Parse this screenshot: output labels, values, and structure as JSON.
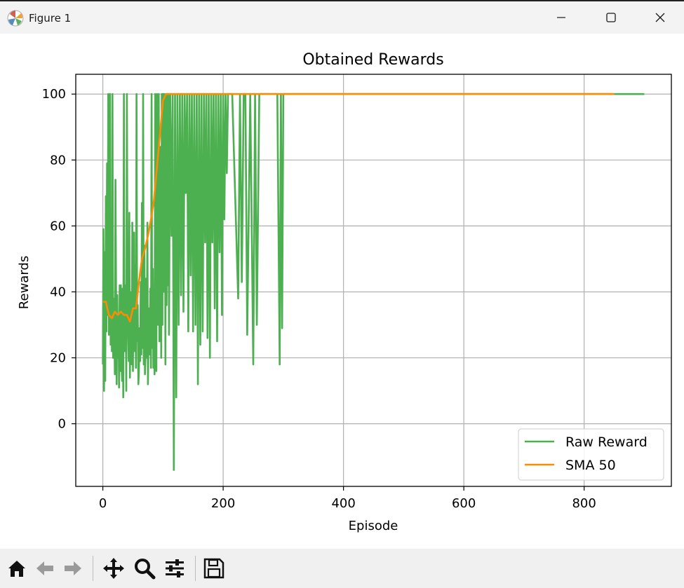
{
  "window": {
    "title": "Figure 1",
    "icons": [
      "matplotlib-logo-icon",
      "minimize-icon",
      "maximize-icon",
      "close-icon"
    ]
  },
  "toolbar": {
    "buttons": [
      "home-icon",
      "back-icon",
      "forward-icon",
      "pan-icon",
      "zoom-icon",
      "configure-subplots-icon",
      "save-icon"
    ]
  },
  "chart_data": {
    "type": "line",
    "title": "Obtained Rewards",
    "xlabel": "Episode",
    "ylabel": "Rewards",
    "xlim": [
      -45,
      945
    ],
    "ylim": [
      -19,
      106
    ],
    "xticks": [
      0,
      200,
      400,
      600,
      800
    ],
    "yticks": [
      0,
      20,
      40,
      60,
      80,
      100
    ],
    "grid": true,
    "legend_position": "lower right",
    "series": [
      {
        "name": "Raw Reward",
        "color": "#4caf50",
        "x": [
          0,
          1,
          2,
          3,
          4,
          5,
          6,
          7,
          8,
          9,
          10,
          11,
          12,
          13,
          14,
          15,
          16,
          17,
          18,
          19,
          20,
          21,
          22,
          23,
          24,
          25,
          26,
          27,
          28,
          29,
          30,
          31,
          32,
          33,
          34,
          35,
          36,
          37,
          38,
          39,
          40,
          41,
          42,
          43,
          44,
          45,
          46,
          47,
          48,
          49,
          50,
          51,
          52,
          53,
          54,
          55,
          56,
          57,
          58,
          59,
          60,
          61,
          62,
          63,
          64,
          65,
          66,
          67,
          68,
          69,
          70,
          71,
          72,
          73,
          74,
          75,
          76,
          77,
          78,
          79,
          80,
          81,
          82,
          83,
          84,
          85,
          86,
          87,
          88,
          89,
          90,
          91,
          92,
          93,
          94,
          95,
          96,
          97,
          98,
          99,
          100,
          101,
          102,
          103,
          104,
          105,
          106,
          107,
          108,
          109,
          110,
          112,
          114,
          116,
          118,
          120,
          122,
          124,
          126,
          128,
          130,
          132,
          134,
          136,
          138,
          140,
          142,
          144,
          146,
          148,
          150,
          152,
          154,
          156,
          158,
          160,
          162,
          164,
          166,
          168,
          170,
          172,
          174,
          176,
          178,
          180,
          182,
          184,
          186,
          188,
          190,
          192,
          194,
          196,
          198,
          200,
          202,
          204,
          206,
          208,
          210,
          215,
          225,
          228,
          231,
          234,
          237,
          240,
          245,
          250,
          253,
          256,
          260,
          270,
          280,
          290,
          294,
          296,
          298,
          300,
          302,
          310,
          900
        ],
        "y": [
          18,
          59,
          10,
          52,
          13,
          69,
          28,
          79,
          33,
          100,
          27,
          38,
          100,
          24,
          43,
          22,
          100,
          20,
          38,
          30,
          15,
          74,
          38,
          12,
          39,
          20,
          33,
          11,
          42,
          16,
          42,
          19,
          13,
          41,
          8,
          100,
          22,
          30,
          42,
          10,
          100,
          35,
          28,
          19,
          64,
          14,
          40,
          20,
          18,
          61,
          16,
          43,
          58,
          22,
          48,
          17,
          100,
          25,
          36,
          12,
          16,
          29,
          19,
          43,
          21,
          67,
          23,
          100,
          18,
          54,
          15,
          21,
          44,
          20,
          61,
          12,
          28,
          35,
          21,
          41,
          17,
          100,
          23,
          47,
          17,
          35,
          15,
          100,
          48,
          16,
          100,
          71,
          30,
          100,
          25,
          62,
          84,
          20,
          100,
          30,
          100,
          100,
          40,
          100,
          18,
          100,
          36,
          100,
          42,
          100,
          27,
          100,
          57,
          100,
          -14,
          100,
          8,
          100,
          30,
          100,
          39,
          100,
          34,
          100,
          70,
          100,
          28,
          100,
          45,
          100,
          28,
          100,
          30,
          100,
          12,
          100,
          24,
          100,
          28,
          100,
          55,
          100,
          26,
          100,
          20,
          100,
          55,
          100,
          35,
          100,
          25,
          100,
          52,
          100,
          33,
          100,
          62,
          100,
          76,
          100,
          100,
          100,
          38,
          100,
          43,
          100,
          100,
          27,
          100,
          18,
          100,
          30,
          100,
          100,
          100,
          100,
          18,
          100,
          29,
          100,
          100,
          100,
          100
        ],
        "x_note": ""
      },
      {
        "name": "SMA 50",
        "color": "#ff8c00",
        "x": [
          0,
          5,
          10,
          15,
          20,
          25,
          30,
          35,
          40,
          45,
          50,
          55,
          60,
          65,
          70,
          75,
          80,
          85,
          90,
          95,
          100,
          105,
          110,
          150,
          200,
          300,
          400,
          500,
          600,
          700,
          800,
          850
        ],
        "y": [
          37,
          37,
          33,
          32,
          34,
          33,
          34,
          33,
          33,
          31,
          35,
          35,
          43,
          50,
          53,
          57,
          62,
          68,
          78,
          88,
          98,
          100,
          100,
          100,
          100,
          100,
          100,
          100,
          100,
          100,
          100,
          100
        ]
      }
    ]
  }
}
